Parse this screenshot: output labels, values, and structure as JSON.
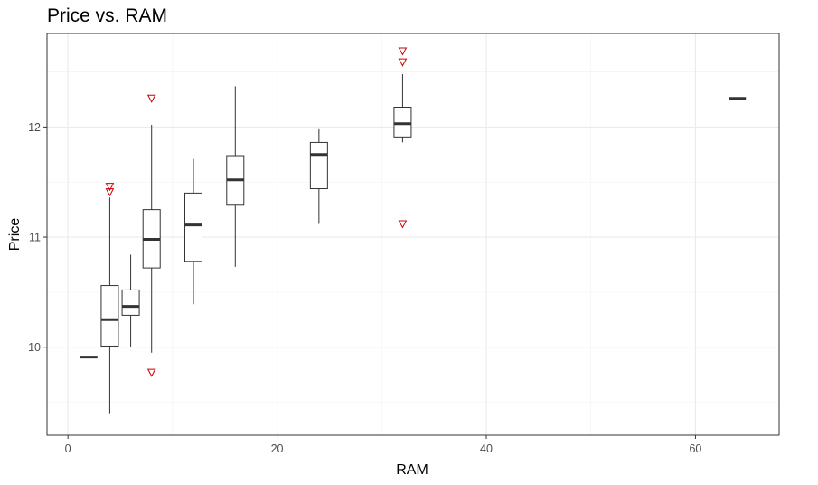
{
  "chart_data": {
    "type": "box",
    "title": "Price vs. RAM",
    "xlabel": "RAM",
    "ylabel": "Price",
    "xlim": [
      -2,
      68
    ],
    "ylim": [
      9.2,
      12.85
    ],
    "x_ticks": [
      0,
      20,
      40,
      60
    ],
    "y_ticks": [
      10,
      11,
      12
    ],
    "x_minor_ticks": [
      10,
      30,
      50
    ],
    "y_minor_ticks": [
      9.5,
      10.5,
      11.5,
      12.5
    ],
    "grid": true,
    "legend": "none",
    "box_color": "#333333",
    "outlier_color": "#cc0000",
    "outlier_shape": "down-triangle",
    "boxes": [
      {
        "x": 2,
        "whisker_low": 9.91,
        "q1": 9.91,
        "median": 9.91,
        "q3": 9.91,
        "whisker_high": 9.91,
        "outliers": []
      },
      {
        "x": 4,
        "whisker_low": 9.4,
        "q1": 10.01,
        "median": 10.25,
        "q3": 10.56,
        "whisker_high": 11.36,
        "outliers": [
          11.46,
          11.41
        ]
      },
      {
        "x": 6,
        "whisker_low": 10.0,
        "q1": 10.29,
        "median": 10.37,
        "q3": 10.52,
        "whisker_high": 10.84,
        "outliers": []
      },
      {
        "x": 8,
        "whisker_low": 9.95,
        "q1": 10.72,
        "median": 10.98,
        "q3": 11.25,
        "whisker_high": 12.02,
        "outliers": [
          12.26,
          9.77
        ]
      },
      {
        "x": 12,
        "whisker_low": 10.39,
        "q1": 10.78,
        "median": 11.11,
        "q3": 11.4,
        "whisker_high": 11.71,
        "outliers": []
      },
      {
        "x": 16,
        "whisker_low": 10.73,
        "q1": 11.29,
        "median": 11.52,
        "q3": 11.74,
        "whisker_high": 12.37,
        "outliers": []
      },
      {
        "x": 24,
        "whisker_low": 11.12,
        "q1": 11.44,
        "median": 11.75,
        "q3": 11.86,
        "whisker_high": 11.98,
        "outliers": []
      },
      {
        "x": 32,
        "whisker_low": 11.86,
        "q1": 11.91,
        "median": 12.03,
        "q3": 12.18,
        "whisker_high": 12.48,
        "outliers": [
          12.69,
          12.59,
          11.12
        ]
      },
      {
        "x": 64,
        "whisker_low": 12.26,
        "q1": 12.26,
        "median": 12.26,
        "q3": 12.26,
        "whisker_high": 12.26,
        "outliers": []
      }
    ]
  }
}
